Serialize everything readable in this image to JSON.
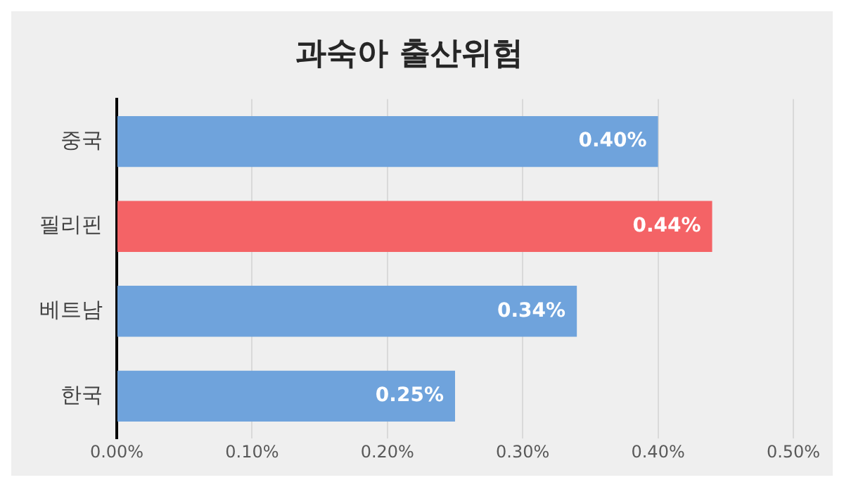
{
  "chart_data": {
    "type": "bar",
    "title": "과숙아 출산위험",
    "orientation": "horizontal",
    "categories": [
      "중국",
      "필리핀",
      "베트남",
      "한국"
    ],
    "values": [
      0.4,
      0.44,
      0.34,
      0.25
    ],
    "colors": [
      "#6fa3dc",
      "#f46366",
      "#6fa3dc",
      "#6fa3dc"
    ],
    "value_labels": [
      "0.40%",
      "0.44%",
      "0.34%",
      "0.25%"
    ],
    "xlim": [
      0,
      0.5
    ],
    "xticks": [
      {
        "value": 0,
        "label": "0.00%"
      },
      {
        "value": 0.1,
        "label": "0.10%"
      },
      {
        "value": 0.2,
        "label": "0.20%"
      },
      {
        "value": 0.3,
        "label": "0.30%"
      },
      {
        "value": 0.4,
        "label": "0.40%"
      },
      {
        "value": 0.5,
        "label": "0.50%"
      }
    ],
    "grid": "x",
    "legend": false
  }
}
